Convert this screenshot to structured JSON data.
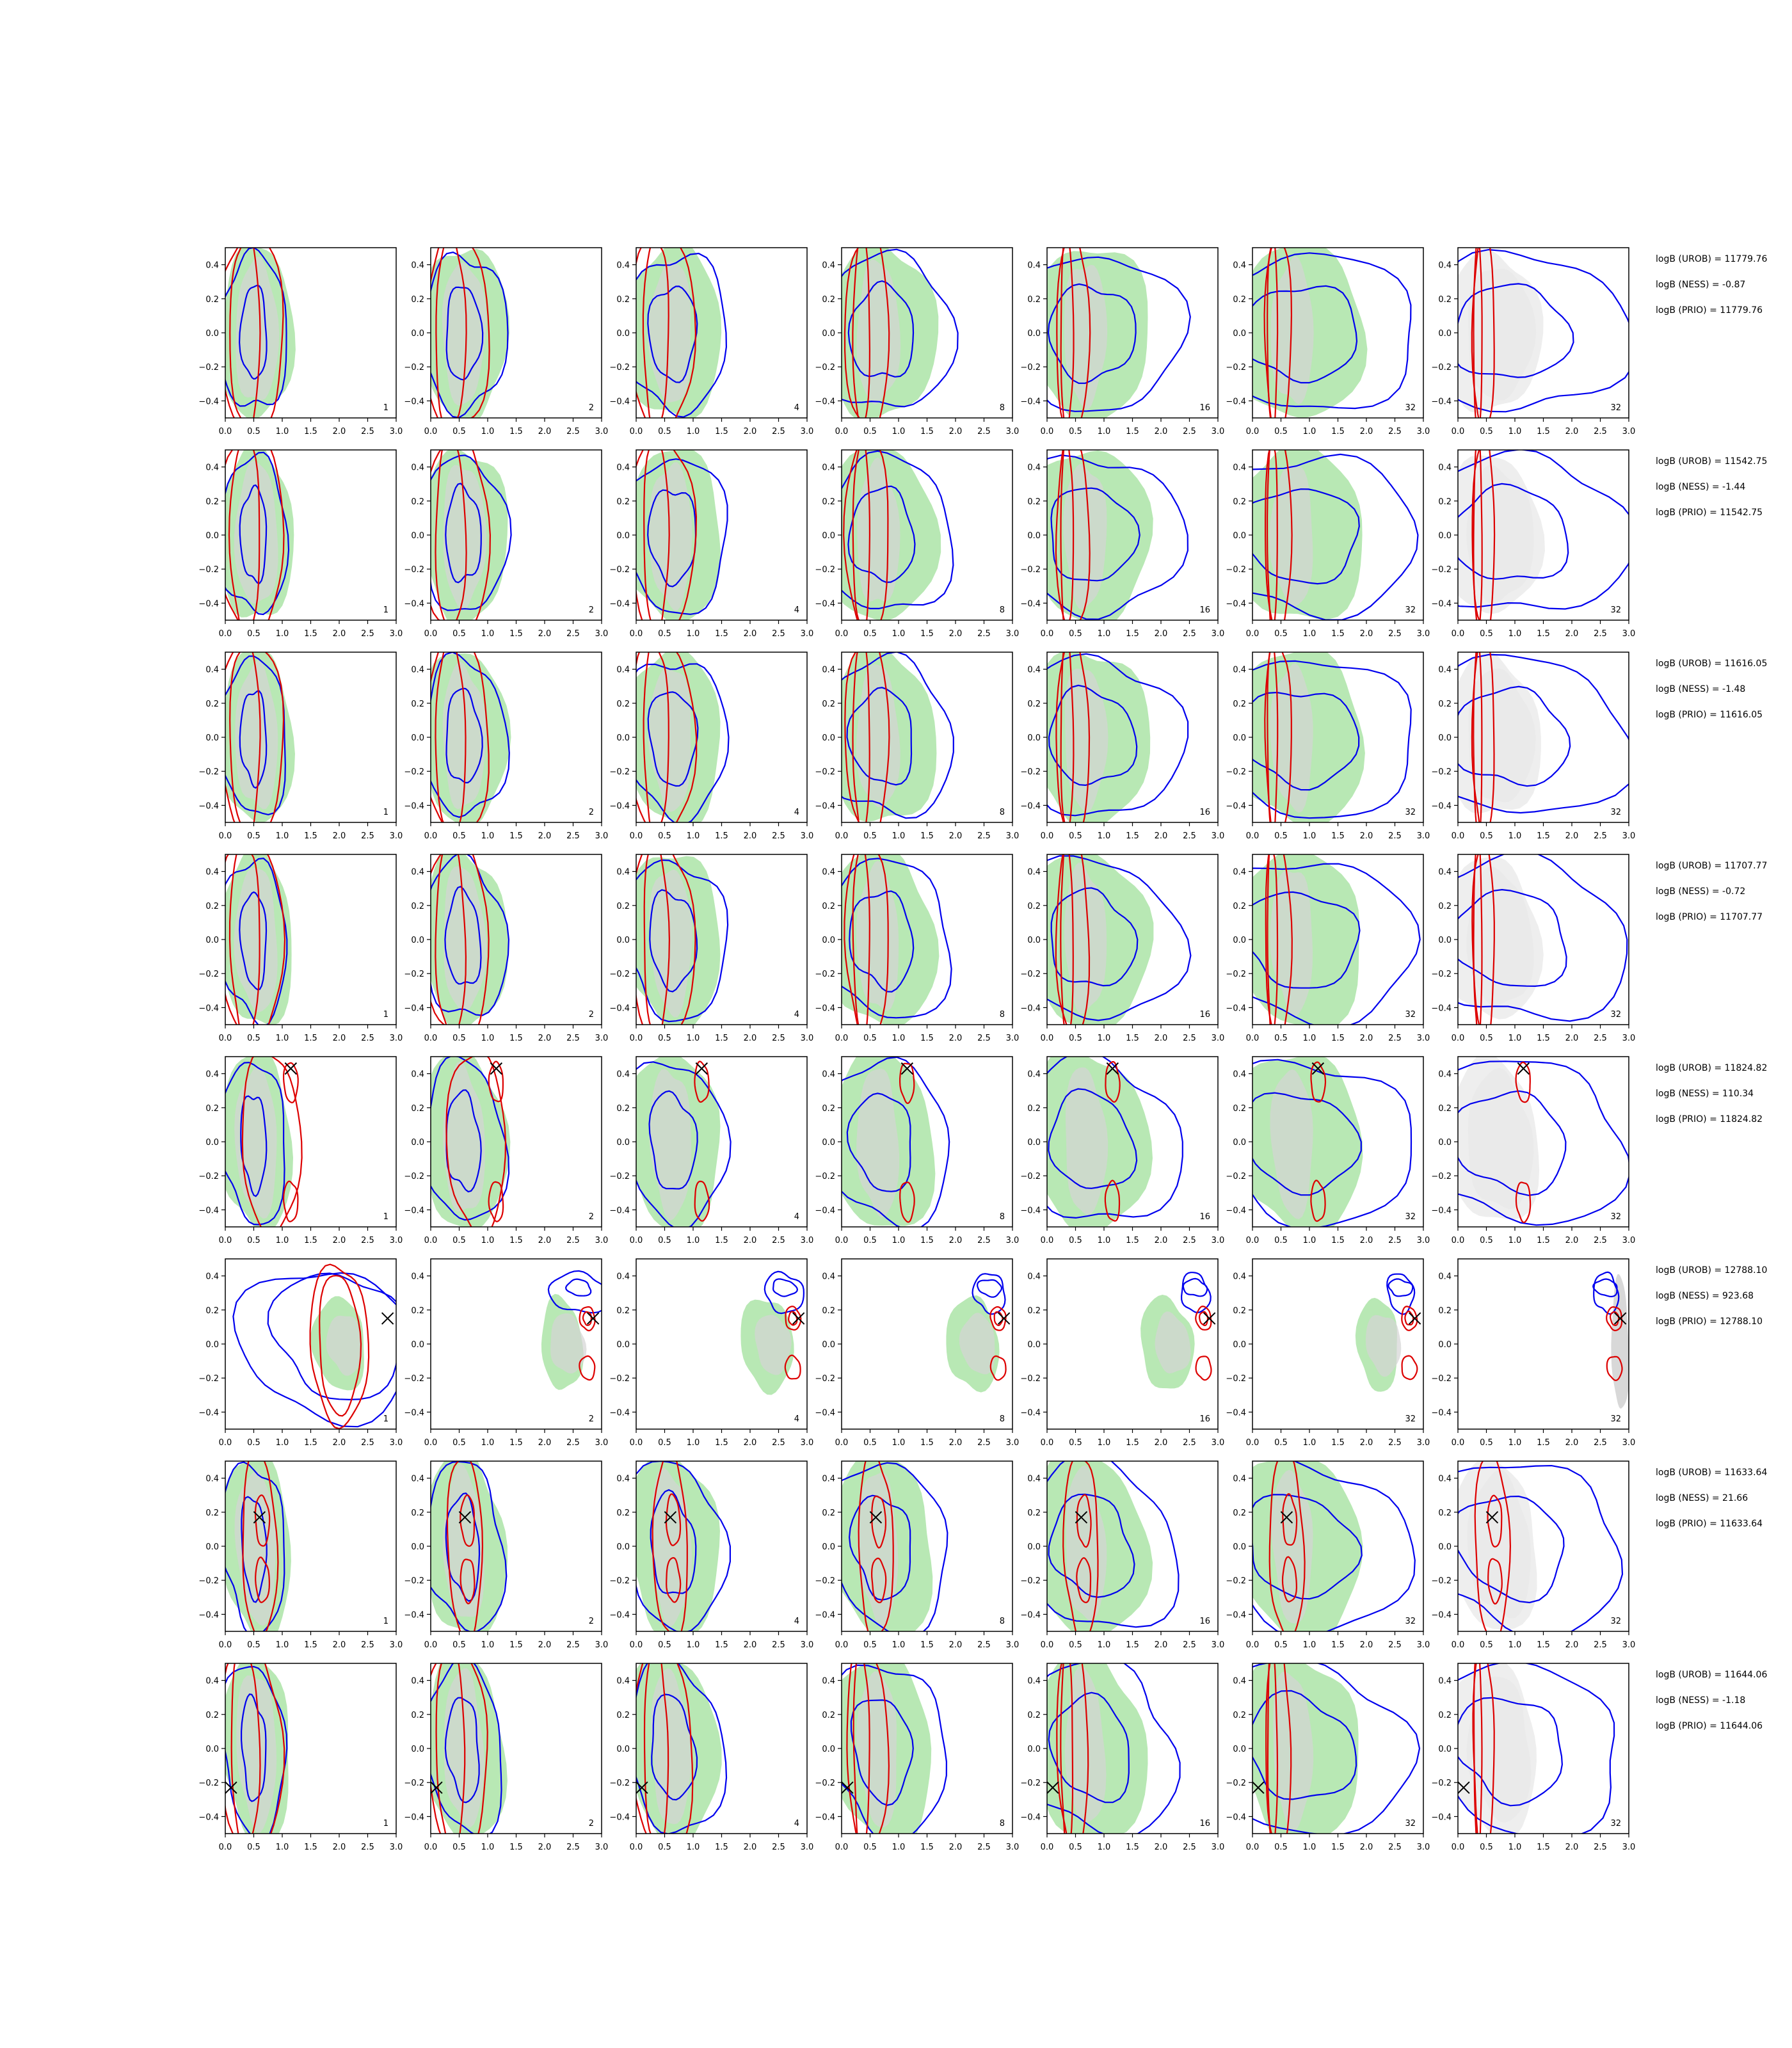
{
  "chart_data": {
    "type": "contour-grid",
    "rows": 8,
    "cols": 7,
    "x_range": [
      0.0,
      3.0
    ],
    "y_range": [
      -0.5,
      0.5
    ],
    "x_ticks": [
      "0.0",
      "0.5",
      "1.0",
      "1.5",
      "2.0",
      "2.5",
      "3.0"
    ],
    "y_ticks": [
      "0.4",
      "0.2",
      "0.0",
      "−0.2",
      "−0.4"
    ],
    "column_labels": [
      "1",
      "2",
      "4",
      "8",
      "16",
      "32",
      "32"
    ],
    "colors": {
      "green_fill": "#b8e8b4",
      "gray_fill": "#d4d4d4",
      "gray_light": "#ececec",
      "blue": "#0000ee",
      "red": "#dd0000",
      "marker": "#000000"
    },
    "row_stats": [
      {
        "urob": "logB (UROB) = 11779.76",
        "ness": "logB (NESS) = -0.87",
        "prio": "logB (PRIO) = 11779.76"
      },
      {
        "urob": "logB (UROB) = 11542.75",
        "ness": "logB (NESS) = -1.44",
        "prio": "logB (PRIO) = 11542.75"
      },
      {
        "urob": "logB (UROB) = 11616.05",
        "ness": "logB (NESS) = -1.48",
        "prio": "logB (PRIO) = 11616.05"
      },
      {
        "urob": "logB (UROB) = 11707.77",
        "ness": "logB (NESS) = -0.72",
        "prio": "logB (PRIO) = 11707.77"
      },
      {
        "urob": "logB (UROB) = 11824.82",
        "ness": "logB (NESS) = 110.34",
        "prio": "logB (PRIO) = 11824.82"
      },
      {
        "urob": "logB (UROB) = 12788.10",
        "ness": "logB (NESS) = 923.68",
        "prio": "logB (PRIO) = 12788.10"
      },
      {
        "urob": "logB (UROB) = 11633.64",
        "ness": "logB (NESS) = 21.66",
        "prio": "logB (PRIO) = 11633.64"
      },
      {
        "urob": "logB (UROB) = 11644.06",
        "ness": "logB (NESS) = -1.18",
        "prio": "logB (PRIO) = 11644.06"
      }
    ],
    "markers": [
      null,
      null,
      null,
      null,
      {
        "x": 1.15,
        "y": 0.43
      },
      {
        "x": 2.85,
        "y": 0.15
      },
      {
        "x": 0.6,
        "y": 0.17
      },
      {
        "x": 0.1,
        "y": -0.23
      }
    ]
  }
}
